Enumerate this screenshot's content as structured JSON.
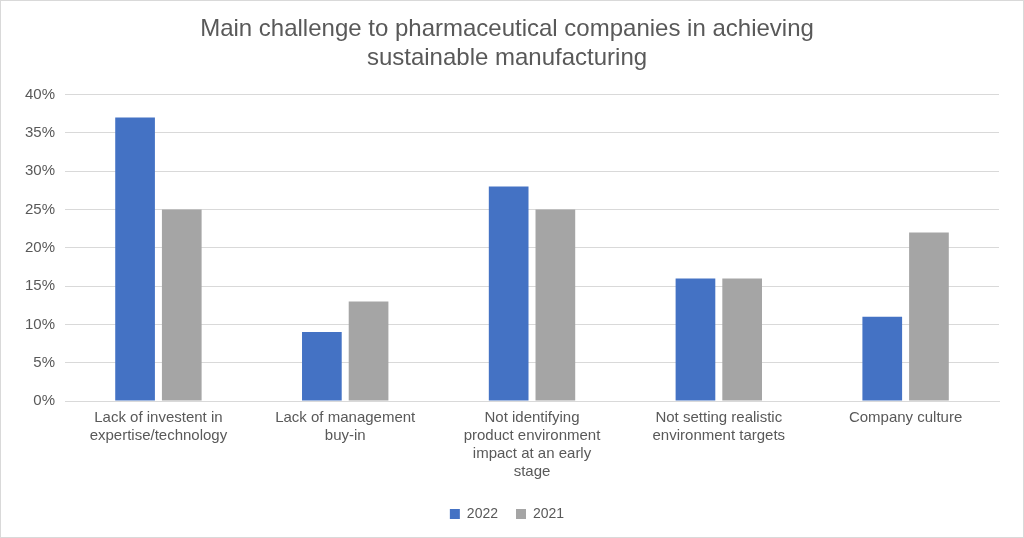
{
  "chart_data": {
    "type": "bar",
    "title": "Main challenge to pharmaceutical companies in achieving sustainable manufacturing",
    "categories": [
      "Lack of investent in expertise/technology",
      "Lack of management buy-in",
      "Not identifying product environment impact at an early stage",
      "Not setting realistic environment targets",
      "Company culture"
    ],
    "series": [
      {
        "name": "2022",
        "color": "#4472c4",
        "values": [
          37,
          9,
          28,
          16,
          11
        ]
      },
      {
        "name": "2021",
        "color": "#a5a5a5",
        "values": [
          25,
          13,
          25,
          16,
          22
        ]
      }
    ],
    "ylim": [
      0,
      40
    ],
    "yticks": [
      {
        "value": 0,
        "label": "0%"
      },
      {
        "value": 5,
        "label": "5%"
      },
      {
        "value": 10,
        "label": "10%"
      },
      {
        "value": 15,
        "label": "15%"
      },
      {
        "value": 20,
        "label": "20%"
      },
      {
        "value": 25,
        "label": "25%"
      },
      {
        "value": 30,
        "label": "30%"
      },
      {
        "value": 35,
        "label": "35%"
      },
      {
        "value": 40,
        "label": "40%"
      }
    ],
    "grid": true,
    "legend": "bottom"
  }
}
